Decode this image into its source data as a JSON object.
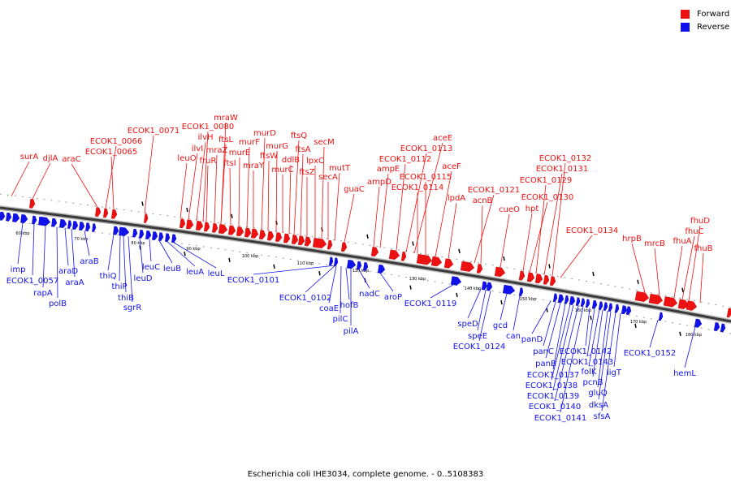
{
  "title": "Escherichia coli IHE3034, complete genome. - 0..5108383",
  "legend": [
    {
      "label": "Forward",
      "color": "#ee1111"
    },
    {
      "label": "Reverse",
      "color": "#1111ee"
    }
  ],
  "colors": {
    "forward": "#ee1111",
    "reverse": "#1111ee",
    "backbone": "#3a3a3a"
  },
  "kbp_ticks": [
    "60 kbp",
    "70 kbp",
    "80 kbp",
    "90 kbp",
    "100 kbp",
    "110 kbp",
    "120 kbp",
    "130 kbp",
    "140 kbp",
    "150 kbp",
    "160 kbp",
    "170 kbp",
    "180 kbp"
  ],
  "forward_genes": [
    "surA",
    "djlA",
    "araC",
    "ECOK1_0066",
    "ECOK1_0065",
    "ECOK1_0071",
    "leuO",
    "ilvI",
    "ilvH",
    "ECOK1_0080",
    "fruR",
    "mraZ",
    "ftsL",
    "mraW",
    "ftsI",
    "murE",
    "murF",
    "mraY",
    "murD",
    "ftsW",
    "murG",
    "murC",
    "ddlB",
    "ftsQ",
    "ftsA",
    "ftsZ",
    "lpxC",
    "secM",
    "secA",
    "mutT",
    "guaC",
    "ampD",
    "ampE",
    "ECOK1_0112",
    "ECOK1_0113",
    "aceE",
    "ECOK1_0114",
    "ECOK1_0115",
    "aceF",
    "lpdA",
    "ECOK1_0121",
    "acnB",
    "cueO",
    "hpt",
    "ECOK1_0130",
    "ECOK1_0129",
    "ECOK1_0131",
    "ECOK1_0132",
    "ECOK1_0134",
    "hrpB",
    "mrcB",
    "fhuA",
    "fhuC",
    "fhuD",
    "fhuB"
  ],
  "reverse_genes": [
    "imp",
    "ECOK1_0057",
    "rapA",
    "polB",
    "araD",
    "araA",
    "araB",
    "thiQ",
    "thiP",
    "thiB",
    "sgrR",
    "leuD",
    "leuC",
    "leuB",
    "leuA",
    "leuL",
    "ECOK1_0101",
    "ECOK1_0102",
    "coaE",
    "pilC",
    "hofB",
    "pilA",
    "nadC",
    "aroP",
    "ECOK1_0119",
    "speD",
    "speE",
    "ECOK1_0124",
    "gcd",
    "can",
    "panD",
    "panC",
    "panB",
    "ECOK1_0137",
    "ECOK1_0138",
    "ECOK1_0139",
    "ECOK1_0140",
    "ECOK1_0141",
    "ECOK1_0142",
    "ECOK1_0143",
    "folK",
    "pcnB",
    "gluQ",
    "dksA",
    "sfsA",
    "ligT",
    "ECOK1_0152",
    "hemL"
  ]
}
